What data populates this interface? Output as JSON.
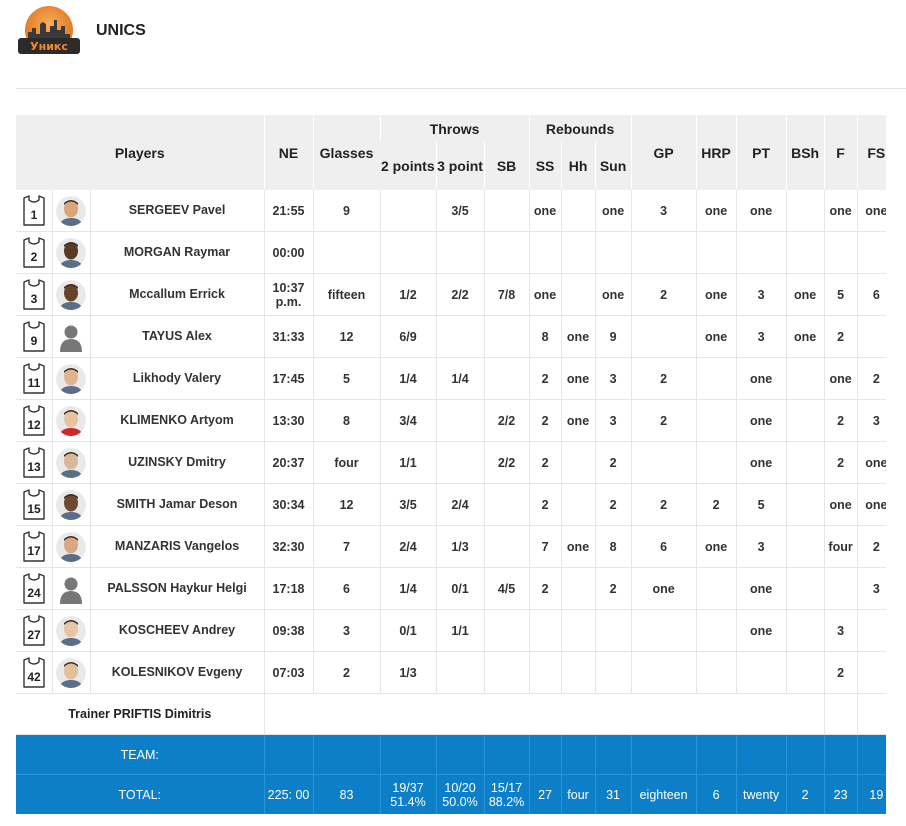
{
  "team": {
    "name": "UNICS",
    "logo_text": "Уникс"
  },
  "headers": {
    "players": "Players",
    "ne": "NE",
    "glasses": "Glasses",
    "throws": "Throws",
    "two_points": "2 points",
    "three_point": "3 point",
    "sb": "SB",
    "rebounds": "Rebounds",
    "ss": "SS",
    "hh": "Hh",
    "sun": "Sun",
    "gp": "GP",
    "hrp": "HRP",
    "pt": "PT",
    "bsh": "BSh",
    "f": "F",
    "fs": "FS"
  },
  "players": [
    {
      "number": "1",
      "name": "SERGEEV Pavel",
      "avatar": "photo",
      "ne": "21:55",
      "glasses": "9",
      "two": "",
      "three": "3/5",
      "sb": "",
      "ss": "one",
      "hh": "",
      "sun": "one",
      "gp": "3",
      "hrp": "one",
      "pt": "one",
      "bsh": "",
      "f": "one",
      "fs": "one"
    },
    {
      "number": "2",
      "name": "MORGAN Raymar",
      "avatar": "photo",
      "ne": "00:00",
      "glasses": "",
      "two": "",
      "three": "",
      "sb": "",
      "ss": "",
      "hh": "",
      "sun": "",
      "gp": "",
      "hrp": "",
      "pt": "",
      "bsh": "",
      "f": "",
      "fs": ""
    },
    {
      "number": "3",
      "name": "Mccallum Errick",
      "avatar": "photo",
      "ne": "10:37 p.m.",
      "glasses": "fifteen",
      "two": "1/2",
      "three": "2/2",
      "sb": "7/8",
      "ss": "one",
      "hh": "",
      "sun": "one",
      "gp": "2",
      "hrp": "one",
      "pt": "3",
      "bsh": "one",
      "f": "5",
      "fs": "6"
    },
    {
      "number": "9",
      "name": "TAYUS Alex",
      "avatar": "silhouette",
      "ne": "31:33",
      "glasses": "12",
      "two": "6/9",
      "three": "",
      "sb": "",
      "ss": "8",
      "hh": "one",
      "sun": "9",
      "gp": "",
      "hrp": "one",
      "pt": "3",
      "bsh": "one",
      "f": "2",
      "fs": ""
    },
    {
      "number": "11",
      "name": "Likhody Valery",
      "avatar": "photo",
      "ne": "17:45",
      "glasses": "5",
      "two": "1/4",
      "three": "1/4",
      "sb": "",
      "ss": "2",
      "hh": "one",
      "sun": "3",
      "gp": "2",
      "hrp": "",
      "pt": "one",
      "bsh": "",
      "f": "one",
      "fs": "2"
    },
    {
      "number": "12",
      "name": "KLIMENKO Artyom",
      "avatar": "photo",
      "ne": "13:30",
      "glasses": "8",
      "two": "3/4",
      "three": "",
      "sb": "2/2",
      "ss": "2",
      "hh": "one",
      "sun": "3",
      "gp": "2",
      "hrp": "",
      "pt": "one",
      "bsh": "",
      "f": "2",
      "fs": "3"
    },
    {
      "number": "13",
      "name": "UZINSKY Dmitry",
      "avatar": "photo",
      "ne": "20:37",
      "glasses": "four",
      "two": "1/1",
      "three": "",
      "sb": "2/2",
      "ss": "2",
      "hh": "",
      "sun": "2",
      "gp": "",
      "hrp": "",
      "pt": "one",
      "bsh": "",
      "f": "2",
      "fs": "one"
    },
    {
      "number": "15",
      "name": "SMITH Jamar Deson",
      "avatar": "photo",
      "ne": "30:34",
      "glasses": "12",
      "two": "3/5",
      "three": "2/4",
      "sb": "",
      "ss": "2",
      "hh": "",
      "sun": "2",
      "gp": "2",
      "hrp": "2",
      "pt": "5",
      "bsh": "",
      "f": "one",
      "fs": "one"
    },
    {
      "number": "17",
      "name": "MANZARIS Vangelos",
      "avatar": "photo",
      "ne": "32:30",
      "glasses": "7",
      "two": "2/4",
      "three": "1/3",
      "sb": "",
      "ss": "7",
      "hh": "one",
      "sun": "8",
      "gp": "6",
      "hrp": "one",
      "pt": "3",
      "bsh": "",
      "f": "four",
      "fs": "2"
    },
    {
      "number": "24",
      "name": "PALSSON Haykur Helgi",
      "avatar": "silhouette",
      "ne": "17:18",
      "glasses": "6",
      "two": "1/4",
      "three": "0/1",
      "sb": "4/5",
      "ss": "2",
      "hh": "",
      "sun": "2",
      "gp": "one",
      "hrp": "",
      "pt": "one",
      "bsh": "",
      "f": "",
      "fs": "3"
    },
    {
      "number": "27",
      "name": "KOSCHEEV Andrey",
      "avatar": "photo",
      "ne": "09:38",
      "glasses": "3",
      "two": "0/1",
      "three": "1/1",
      "sb": "",
      "ss": "",
      "hh": "",
      "sun": "",
      "gp": "",
      "hrp": "",
      "pt": "one",
      "bsh": "",
      "f": "3",
      "fs": ""
    },
    {
      "number": "42",
      "name": "KOLESNIKOV Evgeny",
      "avatar": "photo",
      "ne": "07:03",
      "glasses": "2",
      "two": "1/3",
      "three": "",
      "sb": "",
      "ss": "",
      "hh": "",
      "sun": "",
      "gp": "",
      "hrp": "",
      "pt": "",
      "bsh": "",
      "f": "2",
      "fs": ""
    }
  ],
  "trainer": {
    "label": "Trainer PRIFTIS Dimitris"
  },
  "team_row": {
    "label": "TEAM:"
  },
  "totals": {
    "label": "TOTAL:",
    "ne": "225: 00",
    "glasses": "83",
    "two": "19/37",
    "two_pct": "51.4%",
    "three": "10/20",
    "three_pct": "50.0%",
    "sb": "15/17",
    "sb_pct": "88.2%",
    "ss": "27",
    "hh": "four",
    "sun": "31",
    "gp": "eighteen",
    "hrp": "6",
    "pt": "twenty",
    "bsh": "2",
    "f": "23",
    "fs": "19"
  },
  "colors": {
    "header_bg": "#efefef",
    "total_bg": "#0c7fc8",
    "logo_orange": "#f28a2e"
  }
}
